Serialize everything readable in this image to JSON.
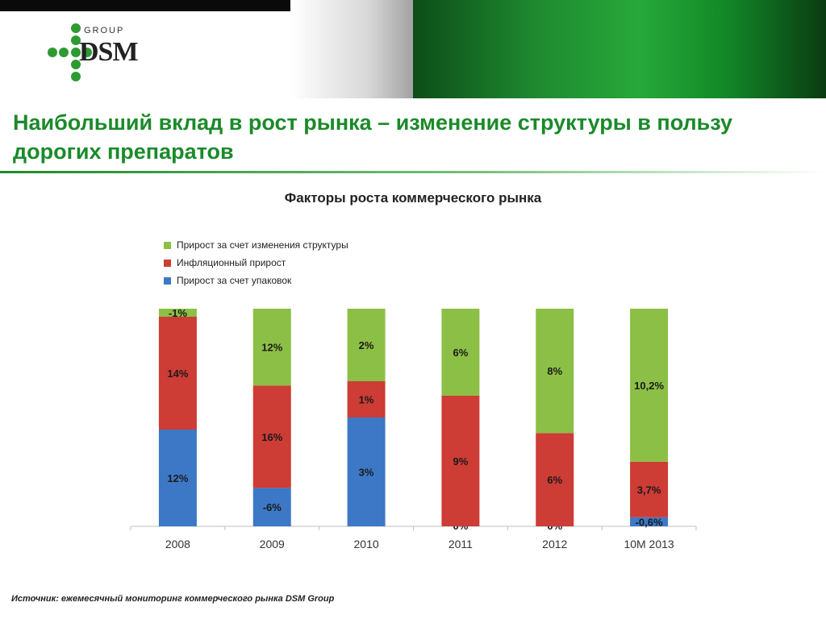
{
  "header": {
    "logo_group": "GROUP",
    "logo_brand": "DSM"
  },
  "slide": {
    "title": "Наибольший вклад в рост рынка – изменение структуры в пользу дорогих препаратов",
    "source": "Источник: ежемесячный мониторинг коммерческого рынка DSM Group"
  },
  "colors": {
    "structure": "#8cbf45",
    "inflation": "#cd3c35",
    "packages": "#3c78c6",
    "title_green": "#1b8a2a"
  },
  "chart_data": {
    "type": "bar",
    "stacked": true,
    "title": "Факторы роста коммерческого рынка",
    "categories": [
      "2008",
      "2009",
      "2010",
      "2011",
      "2012",
      "10M 2013"
    ],
    "series": [
      {
        "name": "Прирост за счет упаковок",
        "color_key": "packages",
        "values": [
          12,
          -6,
          3,
          0,
          0,
          -0.6
        ],
        "labels": [
          "12%",
          "-6%",
          "3%",
          "0%",
          "0%",
          "-0,6%"
        ]
      },
      {
        "name": "Инфляционный прирост",
        "color_key": "inflation",
        "values": [
          14,
          16,
          1,
          9,
          6,
          3.7
        ],
        "labels": [
          "14%",
          "16%",
          "1%",
          "9%",
          "6%",
          "3,7%"
        ]
      },
      {
        "name": "Прирост за счет изменения структуры",
        "color_key": "structure",
        "values": [
          -1,
          12,
          2,
          6,
          8,
          10.2
        ],
        "labels": [
          "-1%",
          "12%",
          "2%",
          "6%",
          "8%",
          "10,2%"
        ]
      }
    ],
    "legend_order": [
      2,
      1,
      0
    ],
    "legend_position": "top-left",
    "normalized_to_100": true,
    "grid": false
  }
}
